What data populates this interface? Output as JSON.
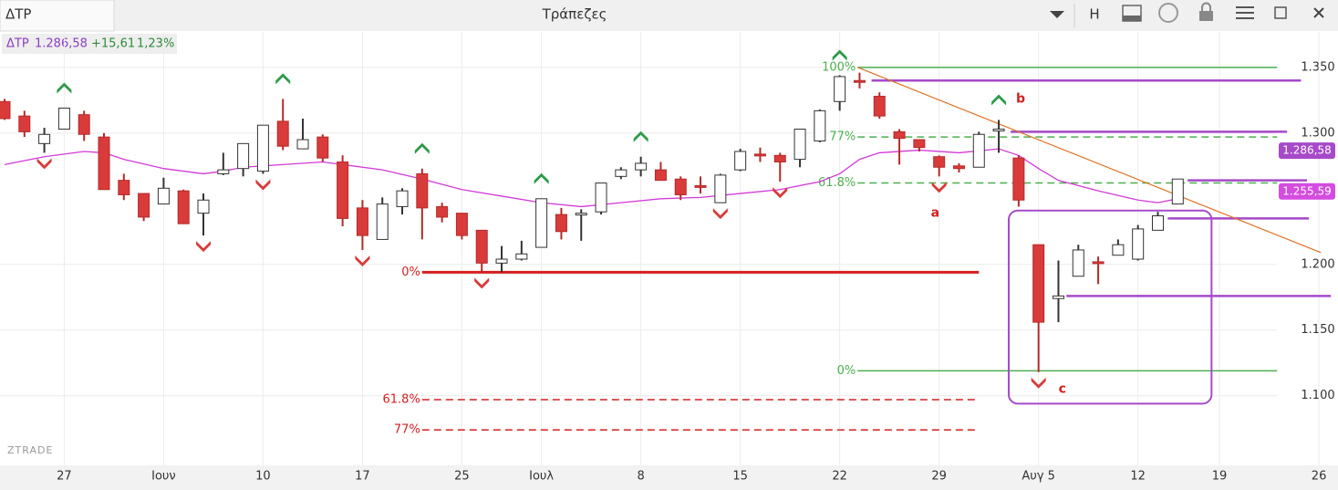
{
  "window": {
    "tab": "ΔΤΡ",
    "title": "Τράπεζες",
    "button": "H",
    "watermark": "ZTRADE"
  },
  "quote": {
    "symbol": "ΔΤΡ",
    "last": "1.286,58",
    "change": "+15,61",
    "change_pct": "1,23%"
  },
  "chart_data": {
    "type": "candlestick",
    "xlim": [
      -0.229,
      66.28
    ],
    "ylim": [
      1.047,
      1.377
    ],
    "xticks": [
      {
        "value": 3,
        "label": "27"
      },
      {
        "value": 8,
        "label": "Ιουν"
      },
      {
        "value": 13,
        "label": "10"
      },
      {
        "value": 18,
        "label": "17"
      },
      {
        "value": 23,
        "label": "25"
      },
      {
        "value": 27,
        "label": "Ιουλ"
      },
      {
        "value": 32,
        "label": "8"
      },
      {
        "value": 37,
        "label": "15"
      },
      {
        "value": 42,
        "label": "22"
      },
      {
        "value": 47,
        "label": "29"
      },
      {
        "value": 52,
        "label": "Αυγ 5"
      },
      {
        "value": 57,
        "label": "12"
      },
      {
        "value": 61.1,
        "label": "19"
      },
      {
        "value": 66.1,
        "label": "26"
      }
    ],
    "yticks": [
      {
        "value": 1.35,
        "label": "1.350"
      },
      {
        "value": 1.3,
        "label": "1.300"
      },
      {
        "value": 1.2,
        "label": "1.200"
      },
      {
        "value": 1.15,
        "label": "1.150"
      },
      {
        "value": 1.1,
        "label": "1.100"
      }
    ],
    "grid": true,
    "candles": {
      "up_color": "#ffffff",
      "down_color": "#d93a3a",
      "x": [
        0,
        1,
        2,
        3,
        4,
        5,
        6,
        7,
        8,
        9,
        10,
        11,
        12,
        13,
        14,
        15,
        16,
        17,
        18,
        19,
        20,
        21,
        22,
        23,
        24,
        25,
        26,
        27,
        28,
        29,
        30,
        31,
        32,
        33,
        34,
        35,
        36,
        37,
        38,
        39,
        40,
        41,
        42,
        43,
        44,
        45,
        46,
        47,
        48,
        49,
        50,
        51,
        52,
        53,
        54,
        55,
        56,
        57,
        58,
        59
      ],
      "open": [
        1.324,
        1.313,
        1.292,
        1.303,
        1.314,
        1.297,
        1.264,
        1.254,
        1.246,
        1.256,
        1.239,
        1.269,
        1.273,
        1.271,
        1.309,
        1.288,
        1.297,
        1.278,
        1.243,
        1.219,
        1.244,
        1.269,
        1.244,
        1.239,
        1.226,
        1.201,
        1.204,
        1.213,
        1.238,
        1.238,
        1.24,
        1.267,
        1.272,
        1.272,
        1.265,
        1.26,
        1.247,
        1.272,
        1.284,
        1.283,
        1.28,
        1.294,
        1.324,
        1.34,
        1.328,
        1.301,
        1.295,
        1.282,
        1.275,
        1.274,
        1.302,
        1.281,
        1.215,
        1.174,
        1.191,
        1.202,
        1.207,
        1.204,
        1.226,
        1.246
      ],
      "high": [
        1.326,
        1.317,
        1.304,
        1.319,
        1.317,
        1.3,
        1.269,
        1.254,
        1.266,
        1.257,
        1.254,
        1.285,
        1.292,
        1.306,
        1.326,
        1.311,
        1.299,
        1.283,
        1.249,
        1.251,
        1.258,
        1.273,
        1.247,
        1.239,
        1.226,
        1.214,
        1.218,
        1.25,
        1.243,
        1.242,
        1.262,
        1.274,
        1.282,
        1.278,
        1.267,
        1.267,
        1.269,
        1.288,
        1.289,
        1.285,
        1.303,
        1.318,
        1.344,
        1.346,
        1.331,
        1.303,
        1.295,
        1.283,
        1.277,
        1.301,
        1.31,
        1.283,
        1.215,
        1.203,
        1.215,
        1.206,
        1.219,
        1.23,
        1.24,
        1.265
      ],
      "low": [
        1.31,
        1.297,
        1.285,
        1.303,
        1.294,
        1.257,
        1.249,
        1.233,
        1.246,
        1.231,
        1.222,
        1.268,
        1.267,
        1.269,
        1.287,
        1.288,
        1.278,
        1.229,
        1.211,
        1.219,
        1.238,
        1.219,
        1.232,
        1.219,
        1.194,
        1.194,
        1.203,
        1.213,
        1.219,
        1.218,
        1.238,
        1.265,
        1.267,
        1.264,
        1.249,
        1.254,
        1.247,
        1.271,
        1.278,
        1.263,
        1.274,
        1.293,
        1.317,
        1.334,
        1.311,
        1.276,
        1.286,
        1.267,
        1.27,
        1.274,
        1.285,
        1.244,
        1.118,
        1.156,
        1.191,
        1.185,
        1.207,
        1.203,
        1.226,
        1.246
      ],
      "close": [
        1.311,
        1.301,
        1.299,
        1.319,
        1.299,
        1.257,
        1.253,
        1.236,
        1.258,
        1.231,
        1.249,
        1.272,
        1.292,
        1.306,
        1.29,
        1.295,
        1.281,
        1.235,
        1.222,
        1.246,
        1.256,
        1.243,
        1.236,
        1.222,
        1.201,
        1.204,
        1.208,
        1.25,
        1.225,
        1.239,
        1.262,
        1.272,
        1.277,
        1.264,
        1.253,
        1.26,
        1.268,
        1.286,
        1.283,
        1.278,
        1.303,
        1.317,
        1.343,
        1.339,
        1.313,
        1.296,
        1.289,
        1.274,
        1.273,
        1.299,
        1.303,
        1.249,
        1.156,
        1.176,
        1.211,
        1.201,
        1.215,
        1.227,
        1.237,
        1.265
      ]
    },
    "moving_average": {
      "color": "#d23ad8",
      "x": [
        0,
        2,
        4,
        5,
        6,
        8,
        10,
        11,
        12,
        14,
        16,
        17,
        19,
        21,
        23,
        25,
        27,
        29,
        31,
        33,
        35,
        37,
        39,
        41,
        42,
        43,
        44,
        46,
        48,
        50,
        51,
        52,
        53,
        55,
        57,
        58,
        59
      ],
      "values": [
        1.276,
        1.282,
        1.286,
        1.285,
        1.28,
        1.273,
        1.269,
        1.271,
        1.274,
        1.276,
        1.278,
        1.276,
        1.272,
        1.265,
        1.257,
        1.252,
        1.247,
        1.244,
        1.247,
        1.25,
        1.251,
        1.254,
        1.257,
        1.263,
        1.269,
        1.28,
        1.285,
        1.287,
        1.285,
        1.288,
        1.283,
        1.273,
        1.264,
        1.256,
        1.249,
        1.247,
        1.25
      ]
    },
    "up_signals": {
      "color": "#2e9a4a",
      "x": [
        3,
        14,
        21,
        27,
        32,
        42,
        50
      ]
    },
    "down_signals": {
      "color": "#d93a3a",
      "x": [
        2,
        10,
        13,
        18,
        24,
        36,
        39,
        47,
        52
      ]
    },
    "fib_levels": [
      {
        "label": "100%",
        "value": 1.35,
        "color": "#4caf50",
        "dashed": false,
        "from": 42.9,
        "to": 64
      },
      {
        "label": "77%",
        "value": 1.297,
        "color": "#4caf50",
        "dashed": true,
        "from": 42.9,
        "to": 64
      },
      {
        "label": "61.8%",
        "value": 1.262,
        "color": "#4caf50",
        "dashed": true,
        "from": 42.9,
        "to": 64
      },
      {
        "label": "0%",
        "value": 1.119,
        "color": "#4caf50",
        "dashed": false,
        "from": 42.9,
        "to": 64
      },
      {
        "label": "0%",
        "value": 1.194,
        "color": "#d42020",
        "dashed": false,
        "from": 21,
        "to": 49
      },
      {
        "label": "61.8%",
        "value": 1.097,
        "color": "#d42020",
        "dashed": true,
        "from": 21,
        "to": 49
      },
      {
        "label": "77%",
        "value": 1.074,
        "color": "#d42020",
        "dashed": true,
        "from": 21,
        "to": 49
      }
    ],
    "horizontal_lines": {
      "color": "#a64ac9",
      "lines": [
        {
          "value": 1.34,
          "from": 43.6,
          "to": 65.2
        },
        {
          "value": 1.301,
          "from": 50.6,
          "to": 64.5
        },
        {
          "value": 1.264,
          "from": 59.5,
          "to": 65.5
        },
        {
          "value": 1.235,
          "from": 58.5,
          "to": 65.6
        },
        {
          "value": 1.176,
          "from": 53.4,
          "to": 66.7
        }
      ]
    },
    "box": {
      "color": "#a64ac9",
      "x": [
        50.5,
        60.7
      ],
      "y": [
        1.094,
        1.241
      ]
    },
    "trendline": {
      "color": "#e07020",
      "x": [
        42.9,
        66.2
      ],
      "y": [
        1.35,
        1.209
      ]
    },
    "annotations": [
      {
        "text": "a",
        "x": 46.8,
        "y": 1.239
      },
      {
        "text": "b",
        "x": 51.1,
        "y": 1.326
      },
      {
        "text": "c",
        "x": 53.2,
        "y": 1.105
      }
    ],
    "price_badges": [
      {
        "value": 1.28658,
        "label": "1.286,58",
        "color": "#a64ac9"
      },
      {
        "value": 1.25559,
        "label": "1.255,59",
        "color": "#d44ce0"
      }
    ]
  }
}
